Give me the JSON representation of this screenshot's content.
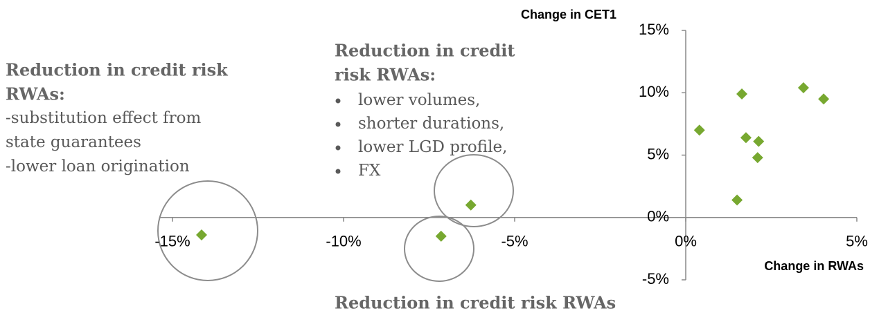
{
  "chart_data": {
    "type": "scatter",
    "xlabel": "Change in RWAs",
    "ylabel": "Change in CET1",
    "x": [
      -14.15,
      -7.15,
      -6.28,
      0.4,
      1.64,
      1.76,
      2.13,
      2.1,
      1.5,
      3.44,
      4.03
    ],
    "values": [
      -1.4,
      -1.5,
      1.0,
      7.0,
      9.9,
      6.4,
      6.1,
      4.8,
      1.4,
      10.4,
      9.5
    ],
    "color": "#77a830",
    "xlim": [
      -15,
      5
    ],
    "ylim": [
      -5,
      15
    ],
    "xticks": [
      {
        "value": -15,
        "label": "-15%"
      },
      {
        "value": -10,
        "label": "-10%"
      },
      {
        "value": -5,
        "label": "-5%"
      },
      {
        "value": 0,
        "label": "0%"
      },
      {
        "value": 5,
        "label": "5%"
      }
    ],
    "yticks": [
      {
        "value": -5,
        "label": "-5%"
      },
      {
        "value": 0,
        "label": "0%"
      },
      {
        "value": 5,
        "label": "5%"
      },
      {
        "value": 10,
        "label": "10%"
      },
      {
        "value": 15,
        "label": "15%"
      }
    ],
    "annotations": [
      {
        "title": [
          "Reduction in credit risk",
          "RWAs:"
        ],
        "lines": [
          "-substitution effect from",
          "state guarantees",
          "-lower loan origination"
        ]
      },
      {
        "title": [
          "Reduction in credit",
          "risk RWAs:"
        ],
        "bullets": [
          "lower volumes,",
          "shorter durations,",
          "lower LGD profile,",
          "FX"
        ]
      },
      {
        "title": [
          "Reduction in credit risk RWAs"
        ]
      }
    ]
  }
}
